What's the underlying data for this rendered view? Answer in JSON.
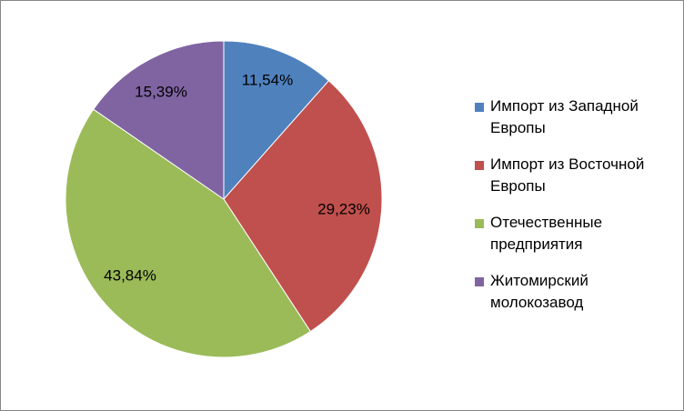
{
  "chart_data": {
    "type": "pie",
    "title": "",
    "slices": [
      {
        "name": "Импорт из Западной Европы",
        "value": 11.54,
        "label": "11,54%",
        "color": "#4F81BD"
      },
      {
        "name": "Импорт из Восточной Европы",
        "value": 29.23,
        "label": "29,23%",
        "color": "#C0504D"
      },
      {
        "name": "Отечественные предприятия",
        "value": 43.84,
        "label": "43,84%",
        "color": "#9BBB59"
      },
      {
        "name": "Житомирский молокозавод",
        "value": 15.39,
        "label": "15,39%",
        "color": "#8064A2"
      }
    ],
    "legend_position": "right",
    "start_angle": "12 o'clock",
    "direction": "clockwise"
  },
  "legend": {
    "items": [
      {
        "label": "Импорт из Западной\nЕвропы",
        "color": "#4F81BD"
      },
      {
        "label": "Импорт из Восточной\nЕвропы",
        "color": "#C0504D"
      },
      {
        "label": "Отечественные\nпредприятия",
        "color": "#9BBB59"
      },
      {
        "label": "Житомирский\nмолокозавод",
        "color": "#8064A2"
      }
    ]
  }
}
